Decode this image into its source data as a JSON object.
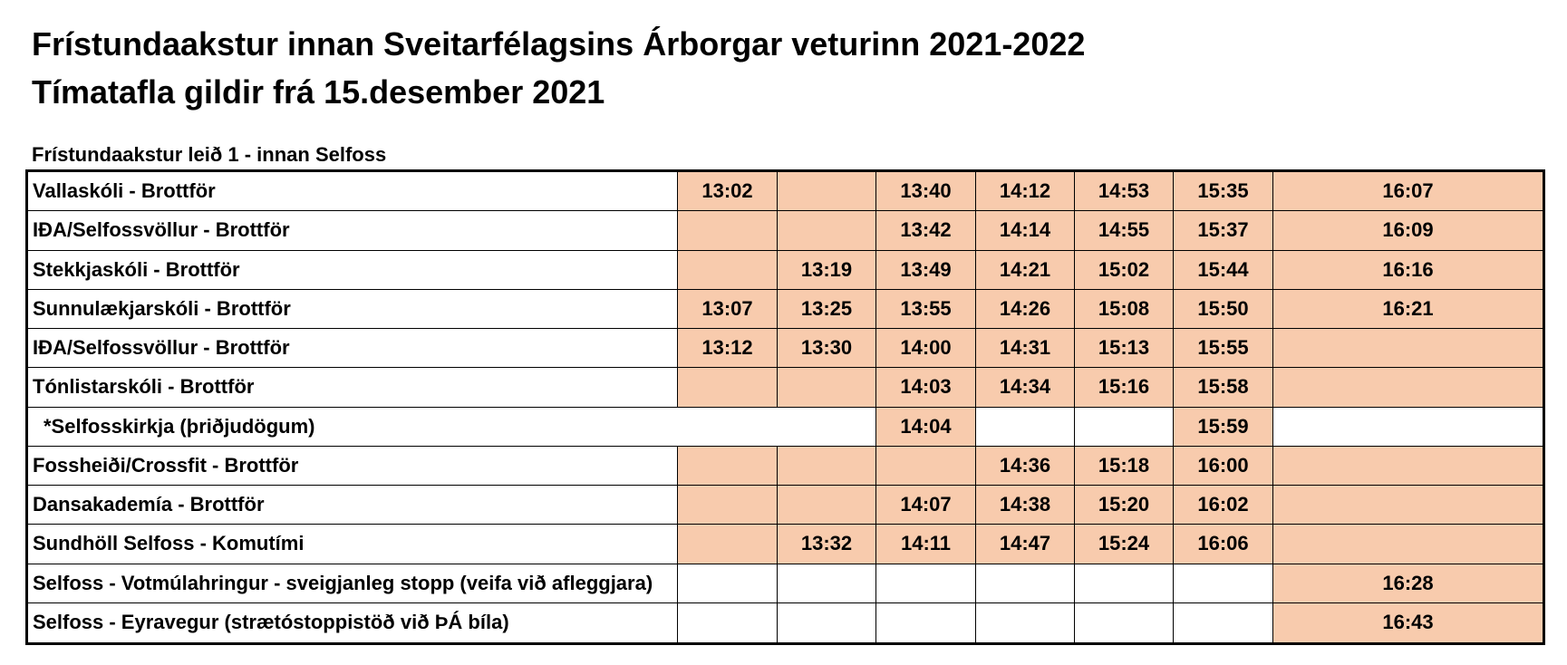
{
  "header": {
    "title_line1": "Frístundaakstur innan Sveitarfélagsins Árborgar veturinn 2021-2022",
    "title_line2": "Tímatafla gildir frá 15.desember 2021",
    "route_title": "Frístundaakstur leið 1 - innan Selfoss"
  },
  "colors": {
    "cell_fill": "#f8cbad",
    "border": "#000000"
  },
  "schedule": {
    "rows": [
      {
        "label": "Vallaskóli - Brottför",
        "shaded": true,
        "cells": [
          "13:02",
          "",
          "13:40",
          "14:12",
          "14:53",
          "15:35",
          "16:07"
        ]
      },
      {
        "label": "IÐA/Selfossvöllur - Brottför",
        "shaded": true,
        "cells": [
          "",
          "",
          "13:42",
          "14:14",
          "14:55",
          "15:37",
          "16:09"
        ]
      },
      {
        "label": "Stekkjaskóli - Brottför",
        "shaded": true,
        "cells": [
          "",
          "13:19",
          "13:49",
          "14:21",
          "15:02",
          "15:44",
          "16:16"
        ]
      },
      {
        "label": "Sunnulækjarskóli - Brottför",
        "shaded": true,
        "cells": [
          "13:07",
          "13:25",
          "13:55",
          "14:26",
          "15:08",
          "15:50",
          "16:21"
        ]
      },
      {
        "label": "IÐA/Selfossvöllur - Brottför",
        "shaded": true,
        "cells": [
          "13:12",
          "13:30",
          "14:00",
          "14:31",
          "15:13",
          "15:55",
          ""
        ]
      },
      {
        "label": "Tónlistarskóli - Brottför",
        "shaded": true,
        "cells": [
          "",
          "",
          "14:03",
          "14:34",
          "15:16",
          "15:58",
          ""
        ]
      },
      {
        "label": "*Selfosskirkja (þriðjudögum)",
        "shaded": false,
        "cells": [
          "",
          "",
          "14:04",
          "",
          "",
          "15:59",
          ""
        ]
      },
      {
        "label": "Fossheiði/Crossfit - Brottför",
        "shaded": true,
        "cells": [
          "",
          "",
          "",
          "14:36",
          "15:18",
          "16:00",
          ""
        ]
      },
      {
        "label": "Dansakademía - Brottför",
        "shaded": true,
        "cells": [
          "",
          "",
          "14:07",
          "14:38",
          "15:20",
          "16:02",
          ""
        ]
      },
      {
        "label": "Sundhöll Selfoss - Komutími",
        "shaded": true,
        "cells": [
          "",
          "13:32",
          "14:11",
          "14:47",
          "15:24",
          "16:06",
          ""
        ]
      },
      {
        "label": "Selfoss - Votmúlahringur - sveigjanleg stopp (veifa við afleggjara)",
        "shaded": false,
        "cells": [
          "",
          "",
          "",
          "",
          "",
          "",
          "16:28"
        ]
      },
      {
        "label": "Selfoss - Eyravegur (strætóstoppistöð við ÞÁ bíla)",
        "shaded": false,
        "cells": [
          "",
          "",
          "",
          "",
          "",
          "",
          "16:43"
        ]
      }
    ]
  }
}
